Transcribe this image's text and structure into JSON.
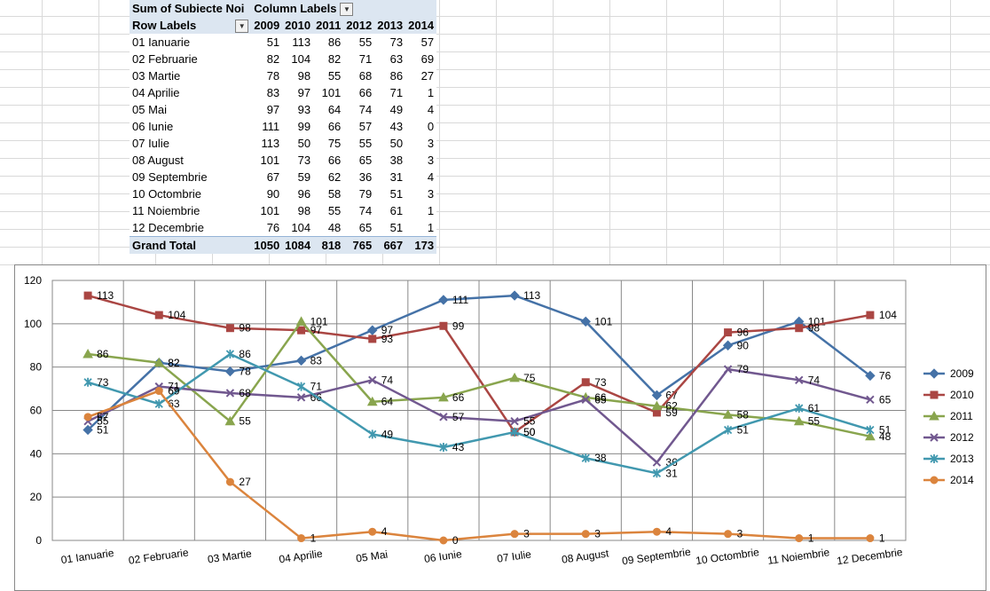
{
  "pivot": {
    "value_field": "Sum of Subiecte Noi",
    "column_labels": "Column Labels",
    "row_labels": "Row Labels",
    "years": [
      "2009",
      "2010",
      "2011",
      "2012",
      "2013",
      "2014"
    ],
    "rows": [
      {
        "label": "01 Ianuarie",
        "v": [
          "51",
          "113",
          "86",
          "55",
          "73",
          "57"
        ]
      },
      {
        "label": "02 Februarie",
        "v": [
          "82",
          "104",
          "82",
          "71",
          "63",
          "69"
        ]
      },
      {
        "label": "03 Martie",
        "v": [
          "78",
          "98",
          "55",
          "68",
          "86",
          "27"
        ]
      },
      {
        "label": "04 Aprilie",
        "v": [
          "83",
          "97",
          "101",
          "66",
          "71",
          "1"
        ]
      },
      {
        "label": "05 Mai",
        "v": [
          "97",
          "93",
          "64",
          "74",
          "49",
          "4"
        ]
      },
      {
        "label": "06 Iunie",
        "v": [
          "111",
          "99",
          "66",
          "57",
          "43",
          "0"
        ]
      },
      {
        "label": "07 Iulie",
        "v": [
          "113",
          "50",
          "75",
          "55",
          "50",
          "3"
        ]
      },
      {
        "label": "08 August",
        "v": [
          "101",
          "73",
          "66",
          "65",
          "38",
          "3"
        ]
      },
      {
        "label": "09 Septembrie",
        "v": [
          "67",
          "59",
          "62",
          "36",
          "31",
          "4"
        ]
      },
      {
        "label": "10 Octombrie",
        "v": [
          "90",
          "96",
          "58",
          "79",
          "51",
          "3"
        ]
      },
      {
        "label": "11 Noiembrie",
        "v": [
          "101",
          "98",
          "55",
          "74",
          "61",
          "1"
        ]
      },
      {
        "label": "12 Decembrie",
        "v": [
          "76",
          "104",
          "48",
          "65",
          "51",
          "1"
        ]
      }
    ],
    "grand_total_label": "Grand Total",
    "grand_total": [
      "1050",
      "1084",
      "818",
      "765",
      "667",
      "173"
    ]
  },
  "chart_data": {
    "type": "line",
    "title": "",
    "xlabel": "",
    "ylabel": "",
    "ylim": [
      0,
      120
    ],
    "yticks": [
      0,
      20,
      40,
      60,
      80,
      100,
      120
    ],
    "grid": true,
    "legend": "right",
    "categories": [
      "01 Ianuarie",
      "02 Februarie",
      "03 Martie",
      "04 Aprilie",
      "05 Mai",
      "06 Iunie",
      "07 Iulie",
      "08 August",
      "09 Septembrie",
      "10 Octombrie",
      "11 Noiembrie",
      "12 Decembrie"
    ],
    "series": [
      {
        "name": "2009",
        "color": "#4572a7",
        "marker": "diamond",
        "values": [
          51,
          82,
          78,
          83,
          97,
          111,
          113,
          101,
          67,
          90,
          101,
          76
        ]
      },
      {
        "name": "2010",
        "color": "#aa4643",
        "marker": "square",
        "values": [
          113,
          104,
          98,
          97,
          93,
          99,
          50,
          73,
          59,
          96,
          98,
          104
        ]
      },
      {
        "name": "2011",
        "color": "#89a54e",
        "marker": "triangle",
        "values": [
          86,
          82,
          55,
          101,
          64,
          66,
          75,
          66,
          62,
          58,
          55,
          48
        ]
      },
      {
        "name": "2012",
        "color": "#71588f",
        "marker": "x",
        "values": [
          55,
          71,
          68,
          66,
          74,
          57,
          55,
          65,
          36,
          79,
          74,
          65
        ]
      },
      {
        "name": "2013",
        "color": "#4198af",
        "marker": "star",
        "values": [
          73,
          63,
          86,
          71,
          49,
          43,
          50,
          38,
          31,
          51,
          61,
          51
        ]
      },
      {
        "name": "2014",
        "color": "#db843d",
        "marker": "circle",
        "values": [
          57,
          69,
          27,
          1,
          4,
          0,
          3,
          3,
          4,
          3,
          1,
          1
        ]
      }
    ]
  }
}
